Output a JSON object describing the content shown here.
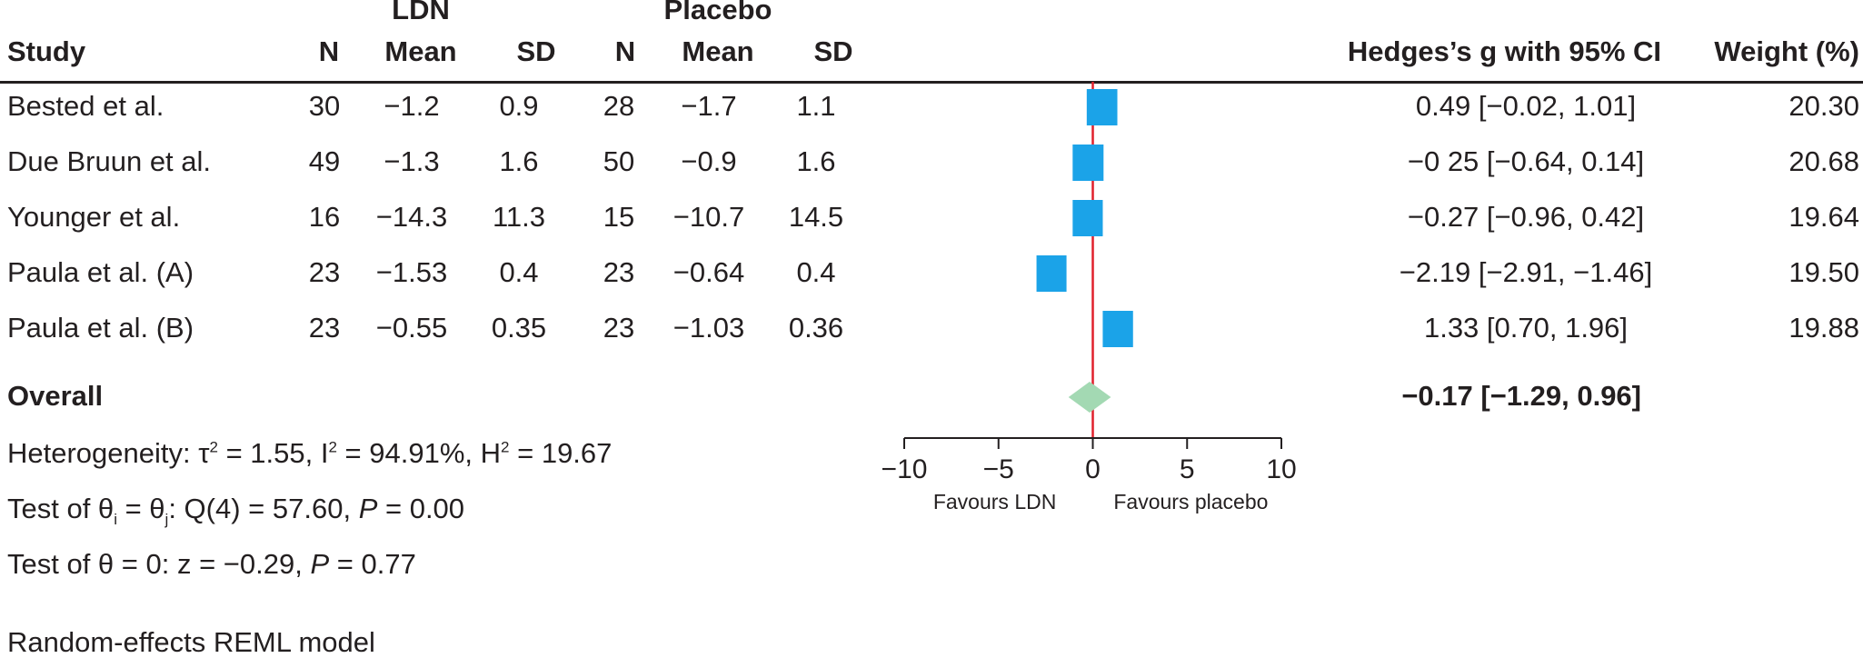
{
  "header": {
    "group1": "LDN",
    "group2": "Placebo",
    "study": "Study",
    "n1": "N",
    "mean1": "Mean",
    "sd1": "SD",
    "n2": "N",
    "mean2": "Mean",
    "sd2": "SD",
    "effect": "Hedges’s g with 95% CI",
    "weight": "Weight (%)"
  },
  "rows": [
    {
      "study": "Bested et al.",
      "n1": "30",
      "mean1": "−1.2",
      "sd1": "0.9",
      "n2": "28",
      "mean2": "−1.7",
      "sd2": "1.1",
      "ci": "0.49 [−0.02, 1.01]",
      "weight": "20.30"
    },
    {
      "study": "Due Bruun et al.",
      "n1": "49",
      "mean1": "−1.3",
      "sd1": "1.6",
      "n2": "50",
      "mean2": "−0.9",
      "sd2": "1.6",
      "ci": "−0 25 [−0.64, 0.14]",
      "weight": "20.68"
    },
    {
      "study": "Younger et al.",
      "n1": "16",
      "mean1": "−14.3",
      "sd1": "11.3",
      "n2": "15",
      "mean2": "−10.7",
      "sd2": "14.5",
      "ci": "−0.27 [−0.96, 0.42]",
      "weight": "19.64"
    },
    {
      "study": "Paula et al. (A)",
      "n1": "23",
      "mean1": "−1.53",
      "sd1": "0.4",
      "n2": "23",
      "mean2": "−0.64",
      "sd2": "0.4",
      "ci": "−2.19 [−2.91, −1.46]",
      "weight": "19.50"
    },
    {
      "study": "Paula et al. (B)",
      "n1": "23",
      "mean1": "−0.55",
      "sd1": "0.35",
      "n2": "23",
      "mean2": "−1.03",
      "sd2": "0.36",
      "ci": "1.33 [0.70, 1.96]",
      "weight": "19.88"
    }
  ],
  "overall": {
    "label": "Overall",
    "ci": "−0.17 [−1.29, 0.96]"
  },
  "footer": {
    "het_prefix": "Heterogeneity: τ",
    "het_sup1": "2",
    "het_mid1": " = 1.55, I",
    "het_sup2": "2",
    "het_mid2": " = 94.91%, H",
    "het_sup3": "2",
    "het_end": " = 19.67",
    "test1_prefix": "Test of θ",
    "test1_sub1": "i",
    "test1_mid": " = θ",
    "test1_sub2": "j",
    "test1_rest": ": Q(4) = 57.60, ",
    "test1_p": "P",
    "test1_end": " = 0.00",
    "test2_prefix": "Test of θ = 0: z = −0.29, ",
    "test2_p": "P",
    "test2_end": " = 0.77",
    "model": "Random-effects REML model"
  },
  "chart_data": {
    "type": "forest",
    "xlim": [
      -10,
      10
    ],
    "ticks": [
      -10,
      -5,
      0,
      5,
      10
    ],
    "tick_labels": [
      "−10",
      "−5",
      "0",
      "5",
      "10"
    ],
    "left_label": "Favours LDN",
    "right_label": "Favours placebo",
    "reference_line": 0,
    "studies": [
      {
        "name": "Bested et al.",
        "estimate": 0.49,
        "lower": -0.02,
        "upper": 1.01,
        "weight": 20.3
      },
      {
        "name": "Due Bruun et al.",
        "estimate": -0.25,
        "lower": -0.64,
        "upper": 0.14,
        "weight": 20.68
      },
      {
        "name": "Younger et al.",
        "estimate": -0.27,
        "lower": -0.96,
        "upper": 0.42,
        "weight": 19.64
      },
      {
        "name": "Paula et al. (A)",
        "estimate": -2.19,
        "lower": -2.91,
        "upper": -1.46,
        "weight": 19.5
      },
      {
        "name": "Paula et al. (B)",
        "estimate": 1.33,
        "lower": 0.7,
        "upper": 1.96,
        "weight": 19.88
      }
    ],
    "overall": {
      "estimate": -0.17,
      "lower": -1.29,
      "upper": 0.96
    },
    "colors": {
      "marker": "#1ba3e8",
      "diamond": "#a3d9b3",
      "ref_line": "#e0202c",
      "axis": "#231f20"
    }
  }
}
